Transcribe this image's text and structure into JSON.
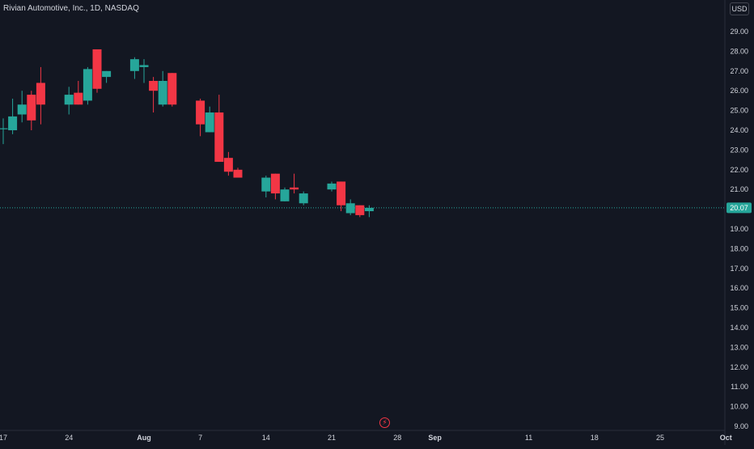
{
  "header": {
    "title": "Rivian Automotive, Inc., 1D, NASDAQ",
    "currency": "USD"
  },
  "colors": {
    "background": "#131722",
    "up": "#26a69a",
    "down": "#f23645",
    "text": "#d1d4dc",
    "axis_line": "#2a2e39",
    "last_price": "#26a69a"
  },
  "icons": {
    "flash": "lightning-bolt-icon"
  },
  "chart_data": {
    "type": "candlestick",
    "title": "Rivian Automotive, Inc., 1D, NASDAQ",
    "ylim": [
      9,
      29.5
    ],
    "y_ticks": [
      "9.00",
      "10.00",
      "11.00",
      "12.00",
      "13.00",
      "14.00",
      "15.00",
      "16.00",
      "17.00",
      "18.00",
      "19.00",
      "20.00",
      "21.00",
      "22.00",
      "23.00",
      "24.00",
      "25.00",
      "26.00",
      "27.00",
      "28.00",
      "29.00"
    ],
    "x_ticks": [
      {
        "label": "17",
        "date": "2023-07-17"
      },
      {
        "label": "24",
        "date": "2023-07-24"
      },
      {
        "label": "Aug",
        "date": "2023-08-01"
      },
      {
        "label": "7",
        "date": "2023-08-07"
      },
      {
        "label": "14",
        "date": "2023-08-14"
      },
      {
        "label": "21",
        "date": "2023-08-21"
      },
      {
        "label": "28",
        "date": "2023-08-28"
      },
      {
        "label": "Sep",
        "date": "2023-09-01"
      },
      {
        "label": "11",
        "date": "2023-09-11"
      },
      {
        "label": "18",
        "date": "2023-09-18"
      },
      {
        "label": "25",
        "date": "2023-09-25"
      },
      {
        "label": "Oct",
        "date": "2023-10-02"
      }
    ],
    "last_price": 20.07,
    "last_price_label": "20.07",
    "candles": [
      {
        "date": "2023-07-17",
        "open": 24.1,
        "high": 24.6,
        "low": 23.3,
        "close": 24.1
      },
      {
        "date": "2023-07-18",
        "open": 24.0,
        "high": 25.6,
        "low": 23.8,
        "close": 24.7
      },
      {
        "date": "2023-07-19",
        "open": 24.8,
        "high": 26.0,
        "low": 24.4,
        "close": 25.3
      },
      {
        "date": "2023-07-20",
        "open": 25.8,
        "high": 26.0,
        "low": 24.0,
        "close": 24.5
      },
      {
        "date": "2023-07-21",
        "open": 26.4,
        "high": 27.2,
        "low": 24.3,
        "close": 25.3
      },
      {
        "date": "2023-07-24",
        "open": 25.3,
        "high": 26.2,
        "low": 24.8,
        "close": 25.8
      },
      {
        "date": "2023-07-25",
        "open": 25.9,
        "high": 26.5,
        "low": 25.3,
        "close": 25.3
      },
      {
        "date": "2023-07-26",
        "open": 25.5,
        "high": 27.2,
        "low": 25.3,
        "close": 27.1
      },
      {
        "date": "2023-07-27",
        "open": 28.1,
        "high": 28.1,
        "low": 25.9,
        "close": 26.1
      },
      {
        "date": "2023-07-28",
        "open": 26.7,
        "high": 27.0,
        "low": 26.4,
        "close": 27.0
      },
      {
        "date": "2023-07-31",
        "open": 27.0,
        "high": 27.7,
        "low": 26.6,
        "close": 27.6
      },
      {
        "date": "2023-08-01",
        "open": 27.2,
        "high": 27.6,
        "low": 26.4,
        "close": 27.3
      },
      {
        "date": "2023-08-02",
        "open": 26.5,
        "high": 26.7,
        "low": 24.9,
        "close": 26.0
      },
      {
        "date": "2023-08-03",
        "open": 25.3,
        "high": 27.0,
        "low": 25.2,
        "close": 26.5
      },
      {
        "date": "2023-08-04",
        "open": 26.9,
        "high": 26.9,
        "low": 25.2,
        "close": 25.3
      },
      {
        "date": "2023-08-07",
        "open": 25.5,
        "high": 25.6,
        "low": 23.7,
        "close": 24.3
      },
      {
        "date": "2023-08-08",
        "open": 23.9,
        "high": 25.2,
        "low": 23.9,
        "close": 24.9
      },
      {
        "date": "2023-08-09",
        "open": 24.9,
        "high": 25.8,
        "low": 22.4,
        "close": 22.4
      },
      {
        "date": "2023-08-10",
        "open": 22.6,
        "high": 22.9,
        "low": 21.7,
        "close": 21.9
      },
      {
        "date": "2023-08-11",
        "open": 22.0,
        "high": 22.1,
        "low": 21.6,
        "close": 21.6
      },
      {
        "date": "2023-08-14",
        "open": 20.9,
        "high": 21.7,
        "low": 20.6,
        "close": 21.6
      },
      {
        "date": "2023-08-15",
        "open": 21.8,
        "high": 21.8,
        "low": 20.5,
        "close": 20.8
      },
      {
        "date": "2023-08-16",
        "open": 20.4,
        "high": 21.1,
        "low": 20.4,
        "close": 21.0
      },
      {
        "date": "2023-08-17",
        "open": 21.1,
        "high": 21.8,
        "low": 20.8,
        "close": 21.0
      },
      {
        "date": "2023-08-18",
        "open": 20.3,
        "high": 20.9,
        "low": 20.2,
        "close": 20.8
      },
      {
        "date": "2023-08-21",
        "open": 21.0,
        "high": 21.4,
        "low": 20.9,
        "close": 21.3
      },
      {
        "date": "2023-08-22",
        "open": 21.4,
        "high": 21.4,
        "low": 19.9,
        "close": 20.2
      },
      {
        "date": "2023-08-23",
        "open": 19.8,
        "high": 20.5,
        "low": 19.7,
        "close": 20.3
      },
      {
        "date": "2023-08-24",
        "open": 20.2,
        "high": 20.2,
        "low": 19.6,
        "close": 19.7
      },
      {
        "date": "2023-08-25",
        "open": 19.9,
        "high": 20.2,
        "low": 19.6,
        "close": 20.07
      }
    ]
  }
}
